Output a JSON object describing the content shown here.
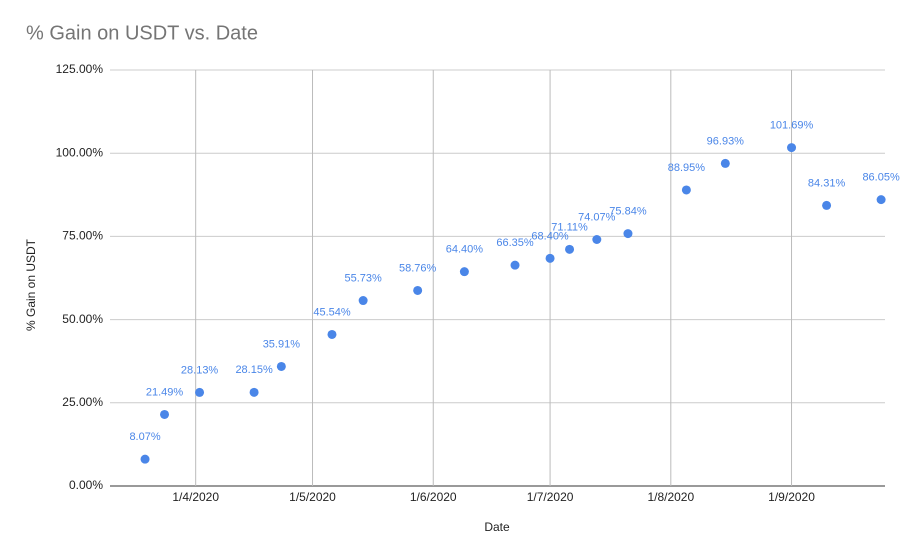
{
  "chart_data": {
    "type": "scatter",
    "title": "% Gain on USDT vs. Date",
    "x_label": "Date",
    "y_label": "% Gain on USDT",
    "x": [
      "2020-03-19",
      "2020-03-24",
      "2020-04-02",
      "2020-04-16",
      "2020-04-23",
      "2020-05-06",
      "2020-05-14",
      "2020-05-28",
      "2020-06-09",
      "2020-06-22",
      "2020-07-01",
      "2020-07-06",
      "2020-07-13",
      "2020-07-21",
      "2020-08-05",
      "2020-08-15",
      "2020-09-01",
      "2020-09-10",
      "2020-09-24"
    ],
    "series": [
      {
        "name": "% Gain on USDT",
        "color": "#4a86e8",
        "values": [
          8.07,
          21.49,
          28.13,
          28.15,
          35.91,
          45.54,
          55.73,
          58.76,
          64.4,
          66.35,
          68.4,
          71.11,
          74.07,
          75.84,
          88.95,
          96.93,
          101.69,
          84.31,
          86.05
        ],
        "value_labels": [
          "8.07%",
          "21.49%",
          "28.13%",
          "28.15%",
          "35.91%",
          "45.54%",
          "55.73%",
          "58.76%",
          "64.40%",
          "66.35%",
          "68.40%",
          "71.11%",
          "74.07%",
          "75.84%",
          "88.95%",
          "96.93%",
          "101.69%",
          "84.31%",
          "86.05%"
        ]
      }
    ],
    "xlim": [
      "2020-03-10",
      "2020-09-25"
    ],
    "xticks": [
      {
        "value": "2020-04-01",
        "label": "1/4/2020"
      },
      {
        "value": "2020-05-01",
        "label": "1/5/2020"
      },
      {
        "value": "2020-06-01",
        "label": "1/6/2020"
      },
      {
        "value": "2020-07-01",
        "label": "1/7/2020"
      },
      {
        "value": "2020-08-01",
        "label": "1/8/2020"
      },
      {
        "value": "2020-09-01",
        "label": "1/9/2020"
      }
    ],
    "ylim": [
      0,
      125
    ],
    "yticks": [
      {
        "value": 0,
        "label": "0.00%"
      },
      {
        "value": 25,
        "label": "25.00%"
      },
      {
        "value": 50,
        "label": "50.00%"
      },
      {
        "value": 75,
        "label": "75.00%"
      },
      {
        "value": 100,
        "label": "100.00%"
      },
      {
        "value": 125,
        "label": "125.00%"
      }
    ],
    "grid": true
  }
}
